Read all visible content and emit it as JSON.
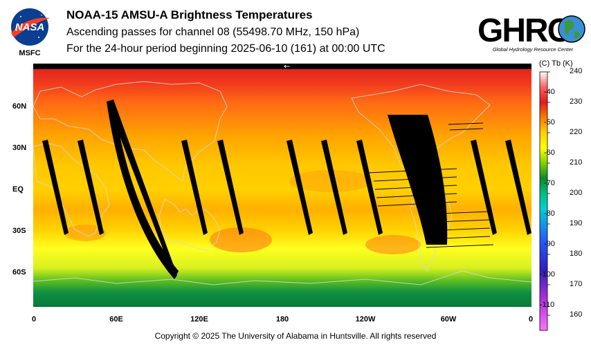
{
  "header": {
    "title": "NOAA-15 AMSU-A Brightness Temperatures",
    "subtitle": "Ascending passes for channel 08 (55498.70 MHz, 150 hPa)",
    "period": "For the 24-hour period beginning 2025-06-10 (161) at 00:00 UTC"
  },
  "logos": {
    "nasa": "NASA",
    "msfc": "MSFC",
    "ghrc": "GHRC",
    "ghrc_full": "Global Hydrology Resource Center"
  },
  "map": {
    "lat_labels": [
      {
        "text": "60N",
        "lat": 60
      },
      {
        "text": "30N",
        "lat": 30
      },
      {
        "text": "EQ",
        "lat": 0
      },
      {
        "text": "30S",
        "lat": -30
      },
      {
        "text": "60S",
        "lat": -60
      }
    ],
    "lon_labels": [
      {
        "text": "0",
        "lon": 0
      },
      {
        "text": "60E",
        "lon": 60
      },
      {
        "text": "120E",
        "lon": 120
      },
      {
        "text": "180",
        "lon": 180
      },
      {
        "text": "120W",
        "lon": 240
      },
      {
        "text": "60W",
        "lon": 300
      },
      {
        "text": "0",
        "lon": 360
      }
    ],
    "direction_arrow": "←"
  },
  "colorbar": {
    "header": "(C)  Tb  (K)",
    "kelvin_ticks": [
      240,
      230,
      220,
      210,
      200,
      190,
      180,
      170,
      160
    ],
    "celsius_ticks": [
      -40,
      -50,
      -60,
      -70,
      -80,
      -90,
      -100,
      -110
    ],
    "range_k": [
      155,
      240
    ],
    "colors": {
      "k240": "#ffffff",
      "k235": "#ff6060",
      "k230": "#e11c1c",
      "k225": "#ff7a00",
      "k220": "#ffd000",
      "k215": "#ffff00",
      "k210": "#7fd000",
      "k205": "#0a8a2a",
      "k200": "#00c080",
      "k195": "#00d0d0",
      "k185": "#2060ff",
      "k175": "#3020c0",
      "k165": "#b030e0",
      "k160": "#ff70ff"
    }
  },
  "footer": {
    "copyright": "Copyright © 2025 The University of Alabama in Huntsville.  All rights reserved"
  }
}
